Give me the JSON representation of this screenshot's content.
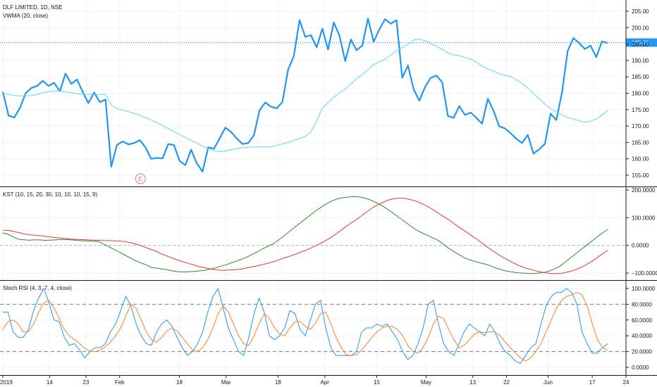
{
  "header": {
    "symbol": "DLF LIMITED, 1D, NSE",
    "overlay": "VWMA (20, close)"
  },
  "chart_data": [
    {
      "type": "line",
      "panel": "price",
      "ylim": [
        152,
        208
      ],
      "yticks": [
        "155.00",
        "160.00",
        "165.00",
        "170.00",
        "175.00",
        "180.00",
        "185.00",
        "190.00",
        "195.00",
        "200.00",
        "205.00"
      ],
      "last_price": 195.45,
      "last_price_label": "195.45",
      "earnings_marker": "E",
      "series": [
        {
          "name": "",
          "color": "#2196f3",
          "values": [
            180.5,
            173.2,
            172.6,
            175.5,
            180,
            181.6,
            182.2,
            183.8,
            182.2,
            183.2,
            180.6,
            186,
            182.8,
            184.2,
            180.4,
            177,
            180.2,
            177.3,
            178.1,
            157.6,
            164.2,
            165.3,
            164.4,
            164.8,
            165.7,
            163.5,
            160,
            160.3,
            160.1,
            164.5,
            164.2,
            159.3,
            158.1,
            162.8,
            158.6,
            156.1,
            163.5,
            163.1,
            166.2,
            169.5,
            168.2,
            166.2,
            164.5,
            164.8,
            167.2,
            174.8,
            177.2,
            175.9,
            175.4,
            177.3,
            187.2,
            191.3,
            202.3,
            197.2,
            197.7,
            194,
            199.7,
            193.3,
            201.6,
            197.5,
            189.8,
            196.4,
            193.1,
            194.5,
            202.8,
            195.7,
            199.5,
            202.6,
            201.2,
            202.3,
            184.7,
            188.5,
            181.2,
            177.7,
            181.9,
            184.7,
            185.4,
            183.3,
            173.1,
            172.5,
            176.1,
            173.4,
            174.1,
            172.5,
            170.7,
            178.3,
            174.7,
            169.9,
            169.3,
            167.8,
            166.1,
            164.8,
            167.3,
            161.6,
            162.9,
            164.6,
            173.8,
            171.8,
            180.2,
            192.9,
            196.8,
            195.3,
            193.5,
            194.5,
            191,
            195.8,
            195.3
          ]
        },
        {
          "name": "",
          "color": "#5fd8ea",
          "values": [
            180,
            179.6,
            179.3,
            179.2,
            179.2,
            179.3,
            179.6,
            180.2,
            180.5,
            180.7,
            180.7,
            180.4,
            180.2,
            179.9,
            179.7,
            179.6,
            179.6,
            179.6,
            179.7,
            176.5,
            175.3,
            174.9,
            174.4,
            173.9,
            173.3,
            172.6,
            171.8,
            171,
            170.1,
            169.2,
            168.3,
            167.4,
            166.5,
            165.6,
            164.8,
            163.9,
            163.2,
            162.5,
            162.2,
            162.4,
            162.8,
            163.1,
            163.4,
            163.6,
            163.6,
            163.6,
            163.6,
            163.6,
            164.1,
            164.5,
            165,
            165.6,
            166.2,
            166.9,
            168.2,
            171.6,
            175.4,
            177.2,
            178.8,
            180.1,
            181.3,
            182.8,
            184.5,
            185.7,
            187.2,
            188.7,
            189.6,
            190.4,
            191.7,
            192.9,
            193.9,
            194.9,
            196.2,
            196.5,
            196,
            195,
            194.3,
            193.4,
            192.3,
            191.7,
            191.4,
            190.9,
            190.4,
            189.5,
            188.2,
            187.4,
            186.8,
            185.9,
            185.5,
            185.2,
            184.1,
            183,
            181.6,
            180,
            178.3,
            176.7,
            175.3,
            174.3,
            173.4,
            172.6,
            172.2,
            171.6,
            171.2,
            171.4,
            172.2,
            173.3,
            174.7
          ]
        }
      ]
    },
    {
      "type": "line",
      "panel": "kst",
      "title": "KST (10, 15, 20, 30, 10, 10, 10, 15, 9)",
      "ylim": [
        -120,
        205
      ],
      "yticks": [
        "−100.0000",
        "0.0000",
        "100.0000",
        "200.0000"
      ],
      "series": [
        {
          "name": "",
          "color": "#2e8b2e",
          "values": [
            45,
            40,
            30,
            22,
            20,
            19,
            20,
            20,
            18,
            19,
            20,
            22,
            21,
            20,
            18,
            17,
            16,
            15,
            14,
            5,
            -5,
            -15,
            -25,
            -35,
            -45,
            -55,
            -63,
            -70,
            -80,
            -82,
            -85,
            -88,
            -92,
            -95,
            -96,
            -95,
            -94,
            -92,
            -90,
            -86,
            -82,
            -76,
            -70,
            -64,
            -57,
            -50,
            -42,
            -33,
            -23,
            -12,
            -3,
            6,
            20,
            34,
            50,
            65,
            80,
            95,
            110,
            125,
            138,
            150,
            160,
            168,
            172,
            174,
            176,
            175,
            172,
            166,
            158,
            148,
            137,
            124,
            110,
            96,
            82,
            68,
            55,
            45,
            37,
            27,
            19,
            5,
            -10,
            -22,
            -34,
            -45,
            -52,
            -58,
            -63,
            -68,
            -74,
            -82,
            -88,
            -93,
            -96,
            -99,
            -100,
            -101,
            -102,
            -100,
            -98,
            -92,
            -85,
            -75,
            -60,
            -45,
            -30,
            -15,
            0,
            15,
            30,
            45,
            58
          ]
        },
        {
          "name": "",
          "color": "#e53935",
          "values": [
            55,
            54,
            50,
            45,
            41,
            38,
            36,
            34,
            31,
            29,
            27,
            25,
            23,
            22,
            21,
            20,
            19,
            18,
            17,
            17,
            16,
            15,
            12,
            8,
            2,
            -5,
            -13,
            -20,
            -30,
            -38,
            -46,
            -53,
            -60,
            -66,
            -72,
            -78,
            -82,
            -86,
            -89,
            -90,
            -89,
            -88,
            -86,
            -82,
            -78,
            -74,
            -69,
            -64,
            -58,
            -51,
            -44,
            -37,
            -30,
            -22,
            -14,
            -5,
            5,
            16,
            28,
            42,
            57,
            72,
            86,
            100,
            115,
            130,
            143,
            153,
            162,
            168,
            170,
            170,
            166,
            160,
            152,
            142,
            130,
            117,
            104,
            91,
            76,
            62,
            48,
            34,
            20,
            5,
            -10,
            -24,
            -37,
            -49,
            -60,
            -70,
            -78,
            -85,
            -90,
            -95,
            -99,
            -102,
            -102,
            -100,
            -96,
            -90,
            -82,
            -72,
            -60,
            -46,
            -32,
            -18
          ]
        }
      ]
    },
    {
      "type": "line",
      "panel": "stoch",
      "title": "Stoch RSI (4, 3, 7, 4, close)",
      "ylim": [
        -8,
        108
      ],
      "yticks": [
        "0.0000",
        "20.0000",
        "40.0000",
        "60.0000",
        "80.0000",
        "100.0000"
      ],
      "bands": [
        20,
        80
      ],
      "series": [
        {
          "name": "",
          "color": "#2196f3",
          "values": [
            70,
            70,
            45,
            38,
            38,
            48,
            72,
            88,
            100,
            82,
            60,
            58,
            38,
            28,
            30,
            22,
            12,
            20,
            25,
            25,
            30,
            45,
            55,
            72,
            90,
            78,
            55,
            40,
            30,
            28,
            45,
            55,
            60,
            52,
            38,
            25,
            15,
            20,
            30,
            45,
            70,
            90,
            100,
            75,
            50,
            35,
            20,
            15,
            38,
            68,
            88,
            70,
            40,
            35,
            40,
            50,
            72,
            68,
            48,
            40,
            60,
            80,
            85,
            50,
            25,
            15,
            15,
            15,
            15,
            20,
            45,
            50,
            50,
            55,
            52,
            55,
            45,
            35,
            20,
            10,
            15,
            30,
            50,
            80,
            85,
            55,
            30,
            20,
            15,
            30,
            45,
            55,
            50,
            45,
            40,
            55,
            45,
            30,
            20,
            15,
            8,
            5,
            15,
            25,
            30,
            55,
            78,
            90,
            95,
            95,
            100,
            95,
            80,
            45,
            30,
            18,
            18,
            25,
            30
          ]
        },
        {
          "name": "",
          "color": "#ff7f27",
          "values": [
            48,
            58,
            60,
            55,
            45,
            45,
            55,
            70,
            82,
            85,
            75,
            62,
            48,
            40,
            35,
            30,
            24,
            20,
            20,
            22,
            26,
            32,
            40,
            50,
            65,
            80,
            75,
            60,
            45,
            35,
            32,
            38,
            46,
            50,
            46,
            38,
            30,
            22,
            20,
            25,
            35,
            50,
            68,
            78,
            70,
            55,
            40,
            30,
            28,
            40,
            55,
            68,
            62,
            50,
            42,
            40,
            50,
            58,
            58,
            52,
            48,
            56,
            68,
            70,
            55,
            38,
            25,
            16,
            15,
            16,
            22,
            30,
            38,
            45,
            50,
            52,
            52,
            48,
            40,
            28,
            20,
            18,
            25,
            38,
            55,
            65,
            62,
            48,
            35,
            25,
            28,
            35,
            42,
            45,
            44,
            45,
            45,
            40,
            32,
            25,
            18,
            12,
            8,
            12,
            20,
            30,
            45,
            60,
            75,
            85,
            90,
            92,
            95,
            92,
            78,
            55,
            35,
            25,
            22
          ]
        }
      ]
    }
  ],
  "x_axis": {
    "labels": [
      {
        "text": "2019",
        "pos": 0
      },
      {
        "text": "14",
        "pos": 9
      },
      {
        "text": "23",
        "pos": 16
      },
      {
        "text": "Feb",
        "pos": 22.5
      },
      {
        "text": "18",
        "pos": 34
      },
      {
        "text": "Mar",
        "pos": 43
      },
      {
        "text": "18",
        "pos": 53
      },
      {
        "text": "Apr",
        "pos": 62
      },
      {
        "text": "15",
        "pos": 72
      },
      {
        "text": "May",
        "pos": 81.5
      },
      {
        "text": "13",
        "pos": 90.5
      },
      {
        "text": "22",
        "pos": 97
      },
      {
        "text": "Jun",
        "pos": 105
      },
      {
        "text": "17",
        "pos": 113.5
      },
      {
        "text": "24",
        "pos": 120
      }
    ],
    "total_slots": 121
  }
}
